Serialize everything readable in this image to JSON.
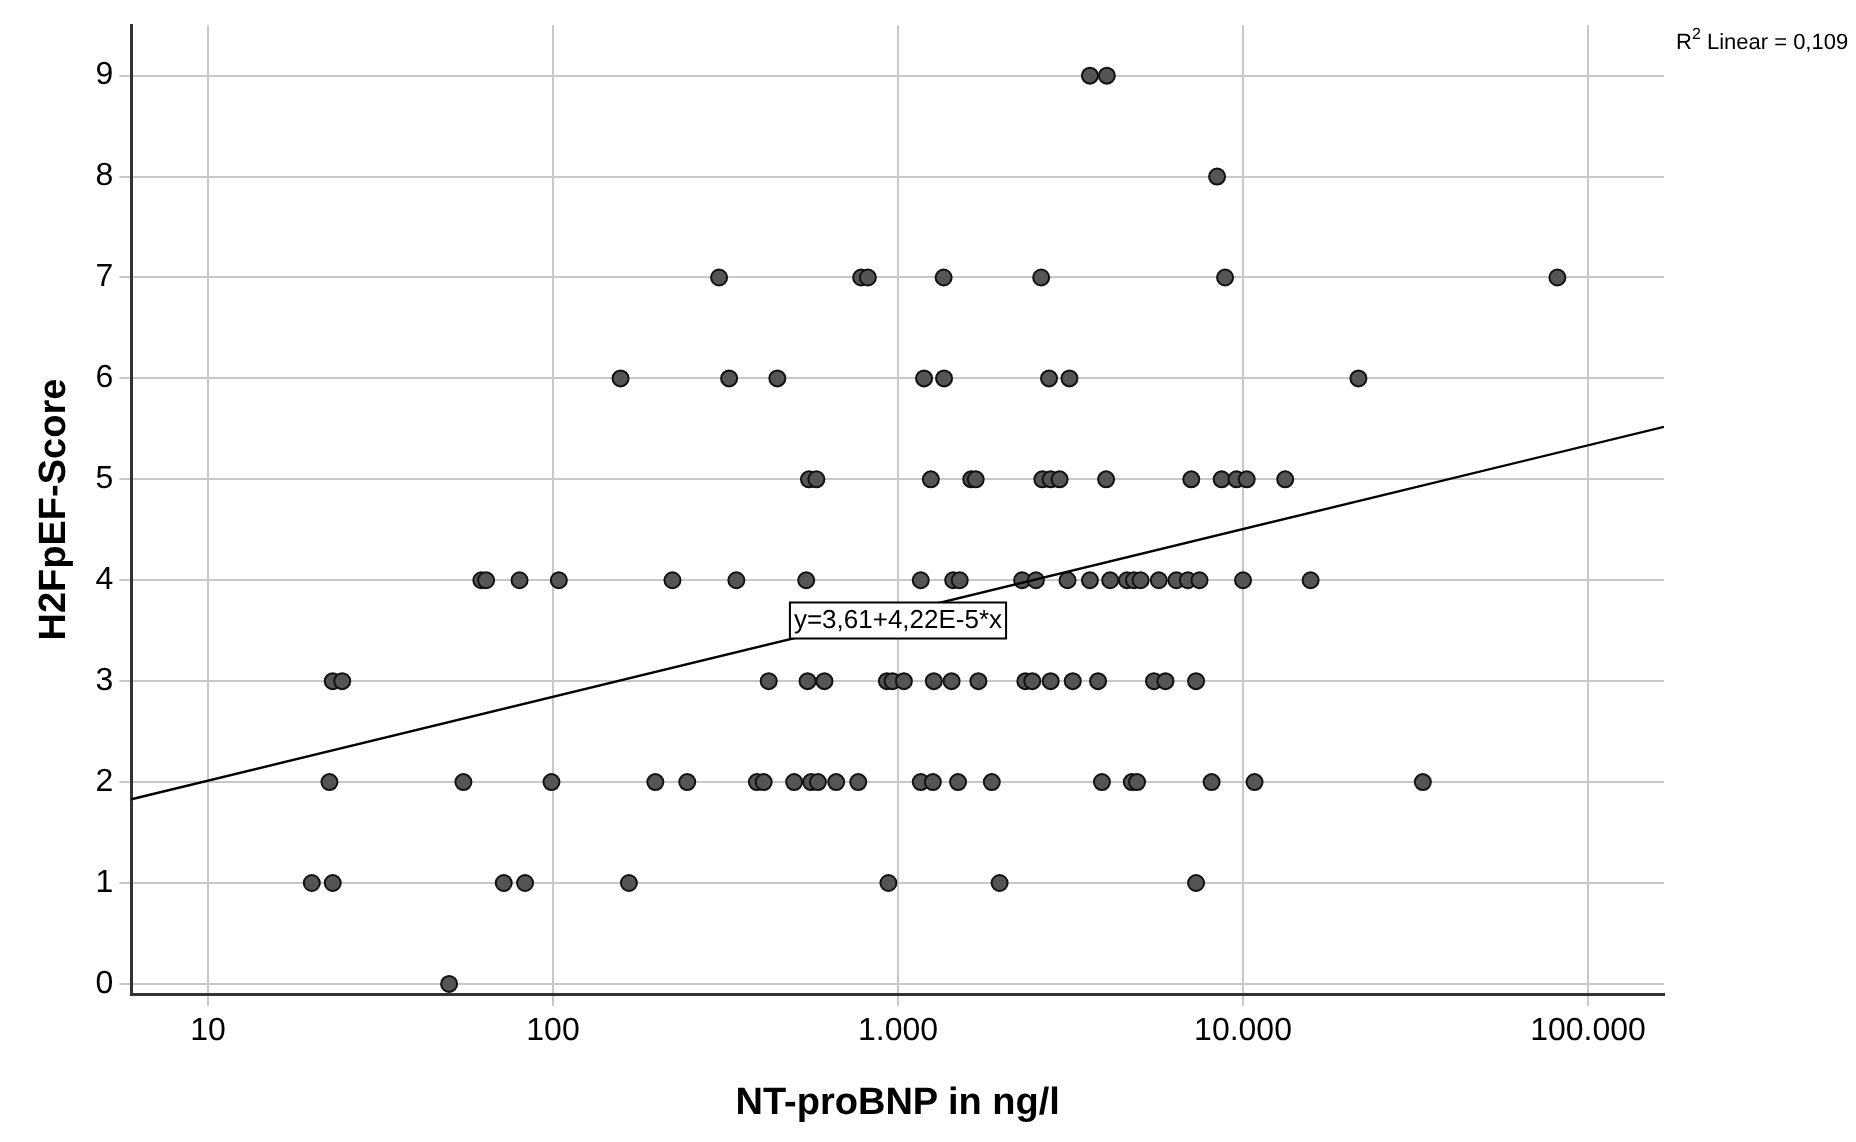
{
  "chart_data": {
    "type": "scatter",
    "xlabel": "NT-proBNP in ng/l",
    "ylabel": "H2FpEF-Score",
    "log": "x",
    "grid": true,
    "legend": false,
    "xlim": [
      6,
      166000
    ],
    "xticks": [
      10,
      100,
      {
        "value": 1000,
        "label": "1.000"
      },
      {
        "value": 10000,
        "label": "10.000"
      },
      {
        "value": 100000,
        "label": "100.000"
      }
    ],
    "ylim": [
      -0.1,
      9.5
    ],
    "yticks": [
      0,
      1,
      2,
      3,
      4,
      5,
      6,
      7,
      8,
      9
    ],
    "series": [
      {
        "marker": "circle",
        "color": "#555555",
        "x": [
          3600,
          4030,
          8410,
          303,
          782,
          818,
          1356,
          2600,
          8870,
          81500,
          157,
          324,
          447,
          1190,
          1360,
          2740,
          3140,
          21600,
          552,
          580,
          1245,
          1630,
          1680,
          2620,
          2770,
          2940,
          4010,
          7080,
          8670,
          9570,
          10250,
          13250,
          62,
          64,
          80,
          104,
          222,
          340,
          542,
          1164,
          1445,
          1510,
          2290,
          2510,
          3100,
          3600,
          4120,
          4610,
          4830,
          5050,
          5700,
          6410,
          6920,
          7480,
          10000,
          15700,
          23,
          24.5,
          422,
          547,
          612,
          929,
          964,
          1040,
          1270,
          1430,
          1710,
          2340,
          2450,
          2770,
          3210,
          3800,
          5520,
          5960,
          7310,
          22.5,
          55,
          99,
          198,
          245,
          390,
          408,
          500,
          560,
          586,
          662,
          767,
          1164,
          1262,
          1493,
          1870,
          3900,
          4760,
          4930,
          8110,
          10800,
          33200,
          20,
          23,
          72,
          83,
          166,
          938,
          1970,
          7310,
          50
        ],
        "values": [
          9,
          9,
          8,
          7,
          7,
          7,
          7,
          7,
          7,
          7,
          6,
          6,
          6,
          6,
          6,
          6,
          6,
          6,
          5,
          5,
          5,
          5,
          5,
          5,
          5,
          5,
          5,
          5,
          5,
          5,
          5,
          5,
          4,
          4,
          4,
          4,
          4,
          4,
          4,
          4,
          4,
          4,
          4,
          4,
          4,
          4,
          4,
          4,
          4,
          4,
          4,
          4,
          4,
          4,
          4,
          4,
          3,
          3,
          3,
          3,
          3,
          3,
          3,
          3,
          3,
          3,
          3,
          3,
          3,
          3,
          3,
          3,
          3,
          3,
          3,
          2,
          2,
          2,
          2,
          2,
          2,
          2,
          2,
          2,
          2,
          2,
          2,
          2,
          2,
          2,
          2,
          2,
          2,
          2,
          2,
          2,
          2,
          1,
          1,
          1,
          1,
          1,
          1,
          1,
          1,
          0
        ]
      },
      {
        "type": "line",
        "marker": "none",
        "color": "#000000",
        "x": [
          6,
          166000
        ],
        "values": [
          1.83,
          5.52
        ]
      }
    ],
    "annotations": [
      {
        "text": "y=3,61+4,22E-5*x",
        "x": 1000,
        "y": 3.6
      },
      "R$^{2}$ Linear = 0,109"
    ]
  }
}
